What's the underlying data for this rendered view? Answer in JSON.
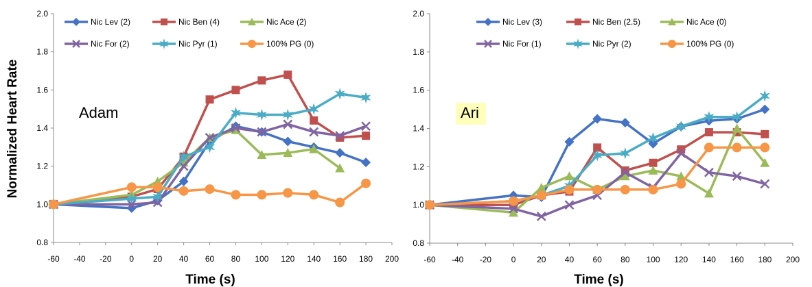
{
  "chart_data": {
    "ylabel": "Normalized Heart Rate",
    "panels": [
      {
        "type": "line",
        "label": "Adam",
        "label_highlight": false,
        "xlabel": "Time (s)",
        "xlim": [
          -60,
          200
        ],
        "ylim": [
          0.8,
          2.0
        ],
        "xticks": [
          -60,
          -40,
          -20,
          0,
          20,
          40,
          60,
          80,
          100,
          120,
          140,
          160,
          180,
          200
        ],
        "yticks": [
          0.8,
          1.0,
          1.2,
          1.4,
          1.6,
          1.8,
          2.0
        ],
        "yticklabels": [
          "0.8",
          "1.0",
          "1.2",
          "1.4",
          "1.6",
          "1.8",
          "2.0"
        ],
        "grid": false,
        "legend": "top",
        "series": [
          {
            "name": "Nic Lev (2)",
            "color": "#4472C4",
            "marker": "diamond",
            "x": [
              -60,
              0,
              20,
              40,
              60,
              80,
              100,
              120,
              140,
              160,
              180
            ],
            "y": [
              1.0,
              0.98,
              1.02,
              1.12,
              1.33,
              1.41,
              1.38,
              1.33,
              1.3,
              1.27,
              1.22
            ]
          },
          {
            "name": "Nic Ben (4)",
            "color": "#C0504D",
            "marker": "square",
            "x": [
              -60,
              0,
              20,
              40,
              60,
              80,
              100,
              120,
              140,
              160,
              180
            ],
            "y": [
              1.0,
              1.04,
              1.08,
              1.25,
              1.55,
              1.6,
              1.65,
              1.68,
              1.44,
              1.35,
              1.36
            ]
          },
          {
            "name": "Nic Ace (2)",
            "color": "#9BBB59",
            "marker": "triangle",
            "x": [
              -60,
              0,
              20,
              40,
              60,
              80,
              100,
              120,
              140,
              160
            ],
            "y": [
              1.0,
              1.05,
              1.12,
              1.22,
              1.35,
              1.39,
              1.26,
              1.27,
              1.29,
              1.19
            ]
          },
          {
            "name": "Nic For (2)",
            "color": "#8064A2",
            "marker": "x",
            "x": [
              -60,
              0,
              20,
              40,
              60,
              80,
              100,
              120,
              140,
              160,
              180
            ],
            "y": [
              1.0,
              1.0,
              1.01,
              1.2,
              1.35,
              1.4,
              1.38,
              1.42,
              1.38,
              1.36,
              1.41
            ]
          },
          {
            "name": "Nic Pyr (1)",
            "color": "#4BACC6",
            "marker": "star",
            "x": [
              -60,
              0,
              20,
              40,
              60,
              80,
              100,
              120,
              140,
              160,
              180
            ],
            "y": [
              1.0,
              1.03,
              1.04,
              1.25,
              1.3,
              1.48,
              1.47,
              1.47,
              1.5,
              1.58,
              1.56
            ]
          },
          {
            "name": "100% PG (0)",
            "color": "#F79646",
            "marker": "circle",
            "x": [
              -60,
              0,
              20,
              40,
              60,
              80,
              100,
              120,
              140,
              160,
              180
            ],
            "y": [
              1.0,
              1.09,
              1.09,
              1.07,
              1.08,
              1.05,
              1.05,
              1.06,
              1.05,
              1.01,
              1.11
            ]
          }
        ]
      },
      {
        "type": "line",
        "label": "Ari",
        "label_highlight": true,
        "highlight_color": "#FFFFBB",
        "xlabel": "Time (s)",
        "xlim": [
          -60,
          200
        ],
        "ylim": [
          0.8,
          2.0
        ],
        "xticks": [
          -60,
          -40,
          -20,
          0,
          20,
          40,
          60,
          80,
          100,
          120,
          140,
          160,
          180,
          200
        ],
        "yticks": [
          0.8,
          1.0,
          1.2,
          1.4,
          1.6,
          1.8,
          2.0
        ],
        "yticklabels": [
          "0.8",
          "1.0",
          "1.2",
          "1.4",
          "1.6",
          "1.8",
          "2.0"
        ],
        "grid": false,
        "legend": "top",
        "series": [
          {
            "name": "Nic Lev (3)",
            "color": "#4472C4",
            "marker": "diamond",
            "x": [
              -60,
              0,
              20,
              40,
              60,
              80,
              100,
              120,
              140,
              160,
              180
            ],
            "y": [
              1.0,
              1.05,
              1.04,
              1.33,
              1.45,
              1.43,
              1.32,
              1.41,
              1.44,
              1.45,
              1.5
            ]
          },
          {
            "name": "Nic Ben (2.5)",
            "color": "#C0504D",
            "marker": "square",
            "x": [
              -60,
              0,
              20,
              40,
              60,
              80,
              100,
              120,
              140,
              160,
              180
            ],
            "y": [
              1.0,
              1.0,
              1.05,
              1.07,
              1.3,
              1.18,
              1.22,
              1.29,
              1.38,
              1.38,
              1.37
            ]
          },
          {
            "name": "Nic Ace (0)",
            "color": "#9BBB59",
            "marker": "triangle",
            "x": [
              -60,
              0,
              20,
              40,
              60,
              80,
              100,
              120,
              140,
              160,
              180
            ],
            "y": [
              1.0,
              0.96,
              1.09,
              1.15,
              1.08,
              1.15,
              1.18,
              1.15,
              1.06,
              1.4,
              1.22
            ]
          },
          {
            "name": "Nic For (1)",
            "color": "#8064A2",
            "marker": "x",
            "x": [
              -60,
              0,
              20,
              40,
              60,
              80,
              100,
              120,
              140,
              160,
              180
            ],
            "y": [
              1.0,
              0.98,
              0.94,
              1.0,
              1.05,
              1.17,
              1.09,
              1.27,
              1.17,
              1.15,
              1.11
            ]
          },
          {
            "name": "Nic Pyr (2)",
            "color": "#4BACC6",
            "marker": "star",
            "x": [
              -60,
              0,
              20,
              40,
              60,
              80,
              100,
              120,
              140,
              160,
              180
            ],
            "y": [
              1.0,
              1.02,
              1.05,
              1.1,
              1.26,
              1.27,
              1.35,
              1.41,
              1.46,
              1.46,
              1.57
            ]
          },
          {
            "name": "100% PG (0)",
            "color": "#F79646",
            "marker": "circle",
            "x": [
              -60,
              0,
              20,
              40,
              60,
              80,
              100,
              120,
              140,
              160,
              180
            ],
            "y": [
              1.0,
              1.02,
              1.05,
              1.08,
              1.08,
              1.08,
              1.08,
              1.11,
              1.3,
              1.3,
              1.3
            ]
          }
        ]
      }
    ]
  }
}
